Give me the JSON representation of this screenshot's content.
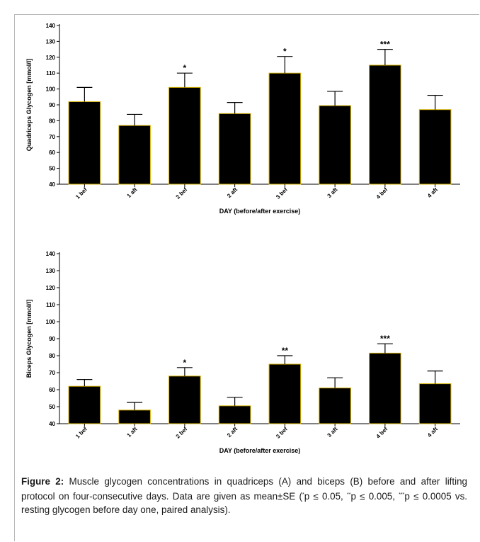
{
  "chart_data": [
    {
      "type": "bar",
      "panel": "A",
      "ylabel": "Quadriceps Glycogen [mmol/l]",
      "xlabel": "DAY (before/after exercise)",
      "ylim": [
        40,
        140
      ],
      "yticks": [
        40,
        50,
        60,
        70,
        80,
        90,
        100,
        110,
        120,
        130,
        140
      ],
      "categories": [
        "1 bef",
        "1 aft",
        "2 bef",
        "2 aft",
        "3 bef",
        "3 aft",
        "4 bef",
        "4 aft"
      ],
      "values": [
        92,
        77,
        101,
        84.5,
        110,
        89.5,
        115,
        87
      ],
      "errors": [
        9,
        7,
        9,
        7,
        10.5,
        9,
        10,
        9
      ],
      "significance": [
        "",
        "",
        "*",
        "",
        "*",
        "",
        "***",
        ""
      ],
      "bar_color": "#000000",
      "bar_edge_color": "#d4b000"
    },
    {
      "type": "bar",
      "panel": "B",
      "ylabel": "Biceps Glycogen [mmol/l]",
      "xlabel": "DAY (before/after exercise)",
      "ylim": [
        40,
        140
      ],
      "yticks": [
        40,
        50,
        60,
        70,
        80,
        90,
        100,
        110,
        120,
        130,
        140
      ],
      "categories": [
        "1 bef",
        "1 aft",
        "2 bef",
        "2 aft",
        "3 bef",
        "3 aft",
        "4 bef",
        "4 aft"
      ],
      "values": [
        62,
        48,
        68,
        50.5,
        75,
        61,
        81.5,
        63.5
      ],
      "errors": [
        4,
        4.5,
        5,
        5,
        5,
        6,
        5.5,
        7.5
      ],
      "significance": [
        "",
        "",
        "*",
        "",
        "**",
        "",
        "***",
        ""
      ],
      "bar_color": "#000000",
      "bar_edge_color": "#d4b000"
    }
  ],
  "caption": {
    "label": "Figure 2:",
    "text_1": " Muscle glycogen concentrations in quadriceps (A) and biceps (B) before and after lifting protocol on four-consecutive days. Data are given as mean±SE (",
    "sup_1": "*",
    "text_2": "p ≤ 0.05, ",
    "sup_2": "**",
    "text_3": "p ≤ 0.005, ",
    "sup_3": "***",
    "text_4": "p ≤ 0.0005 vs. resting glycogen before day one, paired analysis)."
  }
}
